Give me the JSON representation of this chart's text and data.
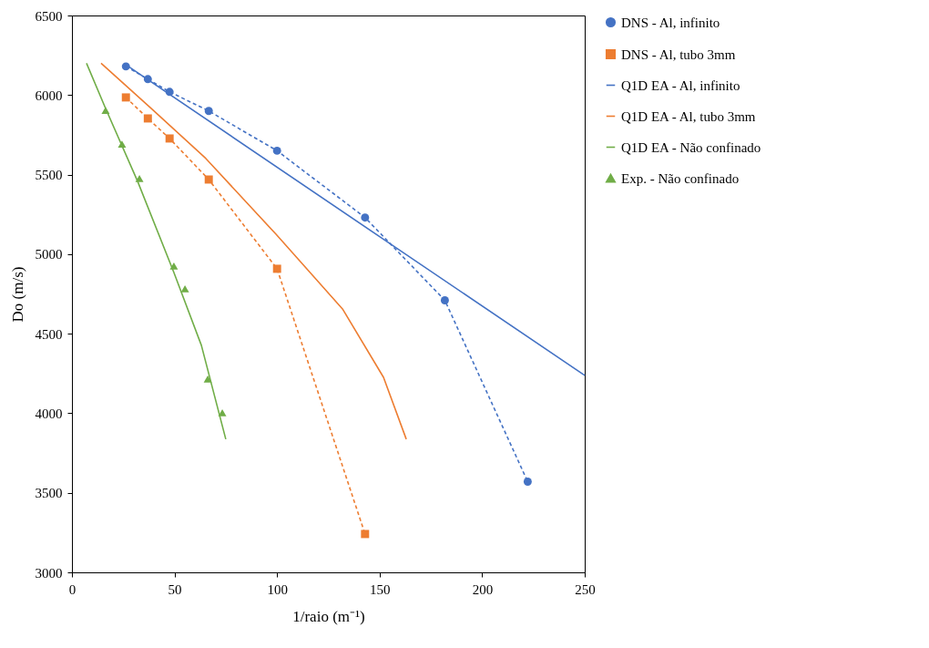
{
  "chart_data": {
    "type": "line",
    "xlabel": "1/raio (m⁻¹)",
    "ylabel": "Do (m/s)",
    "xlim": [
      0,
      250
    ],
    "ylim": [
      3000,
      6500
    ],
    "xticks": [
      0,
      50,
      100,
      150,
      200,
      250
    ],
    "yticks": [
      3000,
      3500,
      4000,
      4500,
      5000,
      5500,
      6000,
      6500
    ],
    "grid": false,
    "legend": "right",
    "series": [
      {
        "name": "DNS - Al, infinito",
        "type": "line",
        "color": "#4472c4",
        "line_style": "dashed",
        "marker": "circle",
        "x": [
          26.3,
          37,
          47.6,
          66.7,
          100,
          142.9,
          181.8,
          222.2
        ],
        "values": [
          6180,
          6100,
          6020,
          5900,
          5650,
          5230,
          4710,
          3570
        ]
      },
      {
        "name": "DNS - Al, tubo 3mm",
        "type": "line",
        "color": "#ed7d31",
        "line_style": "dashed",
        "marker": "square",
        "x": [
          26.3,
          37,
          47.6,
          66.7,
          100,
          142.9
        ],
        "values": [
          5985,
          5853,
          5727,
          5469,
          4908,
          3241
        ]
      },
      {
        "name": "Q1D EA - Al, infinito",
        "type": "line",
        "color": "#4472c4",
        "line_style": "solid",
        "marker": "none",
        "x": [
          27.5,
          150,
          250
        ],
        "values": [
          6180,
          5110,
          4238
        ]
      },
      {
        "name": "Q1D EA - Al, tubo 3mm",
        "type": "line",
        "color": "#ed7d31",
        "line_style": "solid",
        "marker": "none",
        "x": [
          14.2,
          38.6,
          65.3,
          99.5,
          131.9,
          151.9,
          163
        ],
        "values": [
          6200,
          5916,
          5601,
          5125,
          4656,
          4226,
          3837
        ]
      },
      {
        "name": "Q1D EA - Não confinado",
        "type": "line",
        "color": "#70ad47",
        "line_style": "solid",
        "marker": "none",
        "x": [
          7.1,
          16.4,
          32,
          49.7,
          63.1,
          75
        ],
        "values": [
          6200,
          5916,
          5458,
          4885,
          4427,
          3837
        ]
      },
      {
        "name": "Exp. - Não confinado",
        "type": "scatter",
        "color": "#70ad47",
        "marker": "triangle",
        "x": [
          16.4,
          24.4,
          32.9,
          49.7,
          55.1,
          66.2,
          73.3
        ],
        "values": [
          5904,
          5692,
          5475,
          4925,
          4782,
          4215,
          4003
        ]
      }
    ]
  }
}
